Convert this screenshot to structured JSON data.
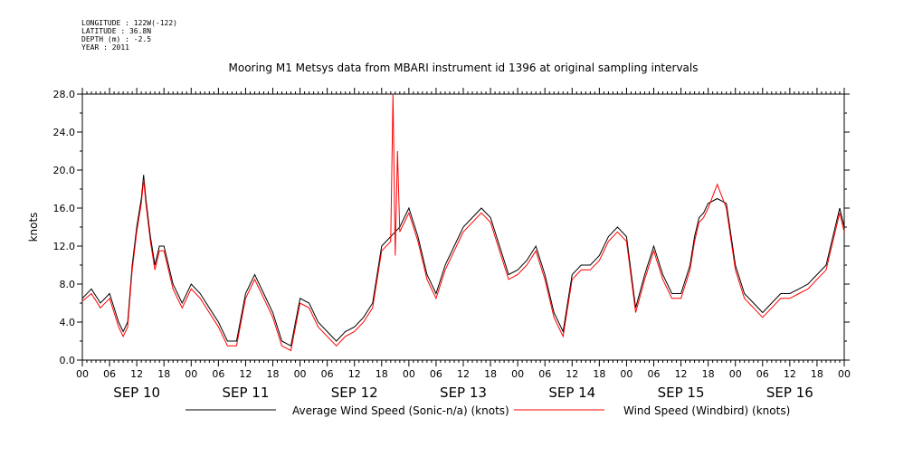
{
  "header": {
    "longitude": "LONGITUDE : 122W(-122)",
    "latitude": "LATITUDE : 36.8N",
    "depth": "DEPTH (m) : -2.5",
    "year": "YEAR : 2011"
  },
  "chart_data": {
    "type": "line",
    "title": "Mooring M1 Metsys data from MBARI instrument id 1396 at original sampling intervals",
    "ylabel": "knots",
    "xlabel": "",
    "ylim": [
      0,
      28
    ],
    "yticks": [
      "0.0",
      "4.0",
      "8.0",
      "12.0",
      "16.0",
      "20.0",
      "24.0",
      "28.0"
    ],
    "x_hour_ticks": [
      "00",
      "06",
      "12",
      "18",
      "00",
      "06",
      "12",
      "18",
      "00",
      "06",
      "12",
      "18",
      "00",
      "06",
      "12",
      "18",
      "00",
      "06",
      "12",
      "18",
      "00",
      "06",
      "12",
      "18",
      "00",
      "06",
      "12",
      "18",
      "00"
    ],
    "day_labels": [
      "SEP 10",
      "SEP 11",
      "SEP 12",
      "SEP 13",
      "SEP 14",
      "SEP 15",
      "SEP 16"
    ],
    "x_units": "hours since SEP 10 00:00",
    "xlim": [
      0,
      168
    ],
    "grid": false,
    "legend_position": "bottom",
    "series": [
      {
        "name": "Average Wind Speed (Sonic-n/a) (knots)",
        "color": "#000000",
        "x": [
          0,
          2,
          4,
          6,
          8,
          9,
          10,
          11,
          12,
          13,
          13.5,
          14,
          15,
          16,
          17,
          18,
          20,
          22,
          24,
          26,
          28,
          30,
          32,
          34,
          36,
          38,
          40,
          42,
          44,
          46,
          48,
          50,
          52,
          54,
          56,
          58,
          60,
          62,
          64,
          66,
          68,
          70,
          72,
          74,
          76,
          78,
          80,
          82,
          84,
          86,
          88,
          90,
          92,
          94,
          96,
          98,
          100,
          102,
          104,
          106,
          108,
          110,
          112,
          114,
          116,
          118,
          120,
          122,
          124,
          126,
          128,
          130,
          132,
          134,
          135,
          136,
          137,
          138,
          140,
          142,
          144,
          146,
          148,
          150,
          152,
          154,
          156,
          158,
          160,
          162,
          164,
          165,
          166,
          167,
          168
        ],
        "y": [
          6.5,
          7.5,
          6,
          7,
          4,
          3,
          4,
          10,
          14,
          17,
          19.5,
          17,
          13,
          10,
          12,
          12,
          8,
          6,
          8,
          7,
          5.5,
          4,
          2,
          2,
          7,
          9,
          7,
          5,
          2,
          1.5,
          6.5,
          6,
          4,
          3,
          2,
          3,
          3.5,
          4.5,
          6,
          12,
          13,
          14,
          16,
          13,
          9,
          7,
          10,
          12,
          14,
          15,
          16,
          15,
          12,
          9,
          9.5,
          10.5,
          12,
          9,
          5,
          3,
          9,
          10,
          10,
          11,
          13,
          14,
          13,
          5.5,
          9,
          12,
          9,
          7,
          7,
          10,
          13,
          15,
          15.5,
          16.5,
          17,
          16.5,
          10,
          7,
          6,
          5,
          6,
          7,
          7,
          7.5,
          8,
          9,
          10,
          12,
          14,
          16,
          14
        ]
      },
      {
        "name": "Wind Speed (Windbird) (knots)",
        "color": "#ff0000",
        "x": [
          0,
          2,
          4,
          6,
          8,
          9,
          10,
          11,
          12,
          13,
          13.5,
          14,
          15,
          16,
          17,
          18,
          20,
          22,
          24,
          26,
          28,
          30,
          32,
          34,
          36,
          38,
          40,
          42,
          44,
          46,
          48,
          50,
          52,
          54,
          56,
          58,
          60,
          62,
          64,
          66,
          68,
          68.5,
          69,
          69.5,
          70,
          72,
          74,
          76,
          78,
          80,
          82,
          84,
          86,
          88,
          90,
          92,
          94,
          96,
          98,
          100,
          102,
          104,
          106,
          108,
          110,
          112,
          114,
          116,
          118,
          120,
          122,
          124,
          126,
          128,
          130,
          132,
          134,
          135,
          136,
          137,
          138,
          140,
          142,
          144,
          146,
          148,
          150,
          152,
          154,
          156,
          158,
          160,
          162,
          164,
          165,
          166,
          167,
          168
        ],
        "y": [
          6.2,
          7,
          5.5,
          6.5,
          3.5,
          2.5,
          3.5,
          9.5,
          13.5,
          16.5,
          19,
          16.5,
          12.5,
          9.5,
          11.5,
          11.5,
          7.5,
          5.5,
          7.5,
          6.5,
          5,
          3.5,
          1.5,
          1.5,
          6.5,
          8.5,
          6.5,
          4.5,
          1.5,
          1,
          6,
          5.5,
          3.5,
          2.5,
          1.5,
          2.5,
          3,
          4,
          5.5,
          11.5,
          12.5,
          28,
          11,
          22,
          13.5,
          15.5,
          12.5,
          8.5,
          6.5,
          9.5,
          11.5,
          13.5,
          14.5,
          15.5,
          14.5,
          11.5,
          8.5,
          9,
          10,
          11.5,
          8.5,
          4.5,
          2.5,
          8.5,
          9.5,
          9.5,
          10.5,
          12.5,
          13.5,
          12.5,
          5,
          8.5,
          11.5,
          8.5,
          6.5,
          6.5,
          9.5,
          12.5,
          14.5,
          15,
          16,
          18.5,
          16,
          9.5,
          6.5,
          5.5,
          4.5,
          5.5,
          6.5,
          6.5,
          7,
          7.5,
          8.5,
          9.5,
          11.5,
          13.5,
          15.5,
          13.5
        ]
      }
    ]
  },
  "legend": {
    "black_label": "Average Wind Speed (Sonic-n/a) (knots)",
    "red_label": "Wind Speed (Windbird) (knots)"
  }
}
